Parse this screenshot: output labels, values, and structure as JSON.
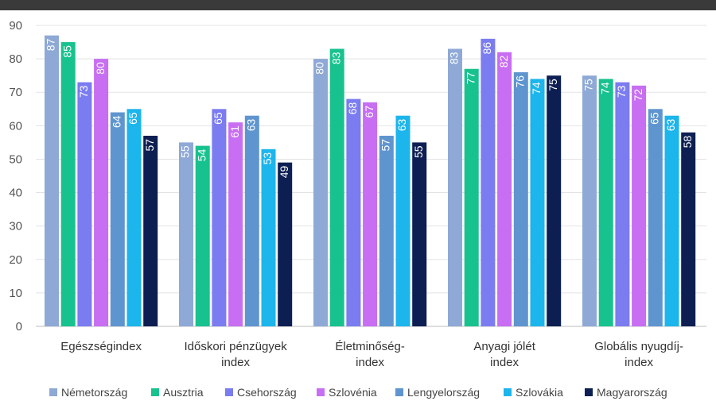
{
  "chart_data": {
    "type": "bar",
    "ylim": [
      0,
      90
    ],
    "yticks": [
      "0",
      "10",
      "20",
      "30",
      "40",
      "50",
      "60",
      "70",
      "80",
      "90"
    ],
    "grid": true,
    "legend_position": "bottom",
    "categories": [
      [
        "Egészségindex"
      ],
      [
        "Időskori pénzügyek",
        "index"
      ],
      [
        "Életminőség-",
        "index"
      ],
      [
        "Anyagi jólét",
        "index"
      ],
      [
        "Globális nyugdíj-",
        "index"
      ]
    ],
    "series": [
      {
        "name": "Németország",
        "color": "#8fa9d6",
        "values": [
          87,
          55,
          80,
          83,
          75
        ]
      },
      {
        "name": "Ausztria",
        "color": "#18c28e",
        "values": [
          85,
          54,
          83,
          77,
          74
        ]
      },
      {
        "name": "Csehország",
        "color": "#7b7cf0",
        "values": [
          73,
          65,
          68,
          86,
          73
        ]
      },
      {
        "name": "Szlovénia",
        "color": "#c86ef2",
        "values": [
          80,
          61,
          67,
          82,
          72
        ]
      },
      {
        "name": "Lengyelország",
        "color": "#5f95cf",
        "values": [
          64,
          63,
          57,
          76,
          65
        ]
      },
      {
        "name": "Szlovákia",
        "color": "#1cb5ec",
        "values": [
          65,
          53,
          63,
          74,
          63
        ]
      },
      {
        "name": "Magyarország",
        "color": "#0d1f52",
        "values": [
          57,
          49,
          55,
          75,
          58
        ]
      }
    ]
  }
}
